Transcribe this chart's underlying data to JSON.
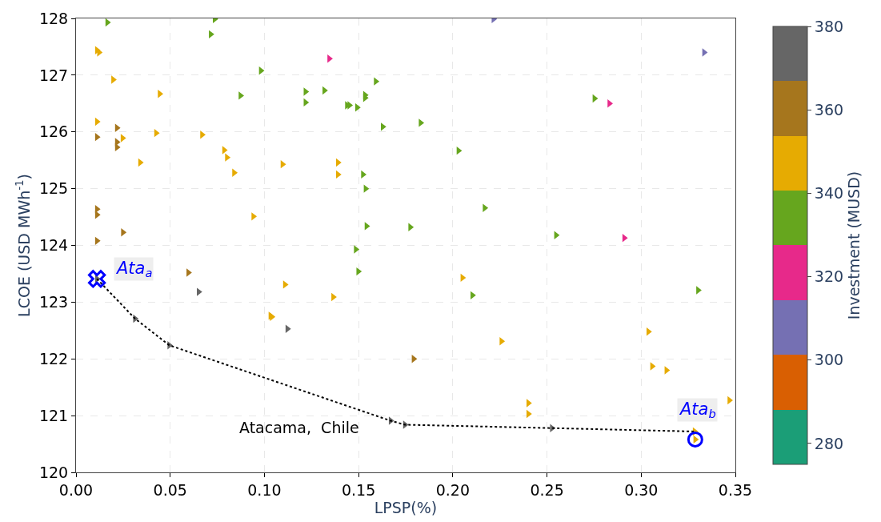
{
  "chart_data": {
    "type": "scatter",
    "xlabel": "LPSP(%)",
    "ylabel": "LCOE (USD MWh$^{-1}$)",
    "clabel": "Investment (MUSD)",
    "xlim": [
      0,
      0.35
    ],
    "xticks": [
      {
        "value": 0,
        "label": "0.00"
      },
      {
        "value": 0.05,
        "label": "0.05"
      },
      {
        "value": 0.1,
        "label": "0.10"
      },
      {
        "value": 0.15,
        "label": "0.15"
      },
      {
        "value": 0.2,
        "label": "0.20"
      },
      {
        "value": 0.25,
        "label": "0.25"
      },
      {
        "value": 0.3,
        "label": "0.30"
      },
      {
        "value": 0.35,
        "label": "0.35"
      }
    ],
    "ylim": [
      120,
      128
    ],
    "yticks": [
      120,
      121,
      122,
      123,
      124,
      125,
      126,
      127,
      128
    ],
    "clim": [
      275,
      380
    ],
    "cticks": [
      280,
      300,
      320,
      340,
      360,
      380
    ],
    "grid": true,
    "annotations": [
      {
        "text": "Ata$_{a}$",
        "x": 0.0111,
        "y": 123.41
      },
      {
        "text": "Ata$_{b}$",
        "x": 0.3287,
        "y": 120.58
      },
      "Atacama,  Chile"
    ],
    "series": [
      {
        "type": "scatter",
        "marker": "triangle",
        "colors": [
          "#66a61e",
          "#66a61e",
          "#66a61e",
          "#66a61e",
          "#66a61e",
          "#66a61e",
          "#66a61e",
          "#66a61e",
          "#66a61e",
          "#66a61e",
          "#66a61e",
          "#66a61e",
          "#66a61e",
          "#66a61e",
          "#66a61e",
          "#66a61e",
          "#66a61e",
          "#66a61e",
          "#66a61e",
          "#66a61e",
          "#66a61e",
          "#66a61e",
          "#66a61e",
          "#66a61e",
          "#66a61e",
          "#66a61e",
          "#66a61e",
          "#66a61e",
          "#e6ab02",
          "#e6ab02",
          "#e6ab02",
          "#e6ab02",
          "#e6ab02",
          "#e6ab02",
          "#e6ab02",
          "#e6ab02",
          "#e6ab02",
          "#e6ab02",
          "#e6ab02",
          "#e6ab02",
          "#e6ab02",
          "#e6ab02",
          "#e6ab02",
          "#e6ab02",
          "#e6ab02",
          "#e6ab02",
          "#e6ab02",
          "#e6ab02",
          "#e6ab02",
          "#e6ab02",
          "#e6ab02",
          "#e6ab02",
          "#e6ab02",
          "#e6ab02",
          "#e6ab02",
          "#e6ab02",
          "#e6ab02",
          "#e6ab02",
          "#a6761d",
          "#a6761d",
          "#a6761d",
          "#a6761d",
          "#a6761d",
          "#a6761d",
          "#a6761d",
          "#a6761d",
          "#a6761d",
          "#a6761d",
          "#666666",
          "#666666",
          "#666666",
          "#666666",
          "#666666",
          "#666666",
          "#666666",
          "#666666",
          "#e7298a",
          "#e7298a",
          "#e7298a",
          "#7570b3",
          "#7570b3"
        ],
        "x": [
          0.0166,
          0.0736,
          0.0715,
          0.0981,
          0.0873,
          0.1218,
          0.1218,
          0.1318,
          0.1591,
          0.1451,
          0.1534,
          0.1534,
          0.1438,
          0.1492,
          0.1628,
          0.1829,
          0.203,
          0.1523,
          0.1537,
          0.2169,
          0.1542,
          0.1774,
          0.1485,
          0.1498,
          0.2548,
          0.3302,
          0.2104,
          0.2752,
          0.0111,
          0.0122,
          0.0197,
          0.0444,
          0.0111,
          0.0425,
          0.0247,
          0.0669,
          0.0786,
          0.0801,
          0.034,
          0.0839,
          0.1096,
          0.0941,
          0.139,
          0.139,
          0.1109,
          0.1365,
          0.1032,
          0.1039,
          0.2051,
          0.2258,
          0.3038,
          0.3058,
          0.3134,
          0.2401,
          0.2401,
          0.3468,
          0.3284,
          0.3287,
          0.0217,
          0.0111,
          0.0217,
          0.0217,
          0.0111,
          0.0111,
          0.0249,
          0.0111,
          0.0596,
          0.1792,
          0.0111,
          0.0651,
          0.1122,
          0.0313,
          0.0495,
          0.167,
          0.1746,
          0.2526,
          0.1344,
          0.2831,
          0.291,
          0.2216,
          0.3334
        ],
        "values": [
          127.93,
          127.99,
          127.72,
          127.08,
          126.64,
          126.71,
          126.52,
          126.73,
          126.89,
          126.47,
          126.65,
          126.6,
          126.47,
          126.43,
          126.09,
          126.16,
          125.67,
          125.25,
          125.0,
          124.66,
          124.34,
          124.32,
          123.93,
          123.54,
          124.18,
          123.21,
          123.12,
          126.59,
          127.44,
          127.4,
          126.92,
          126.67,
          126.18,
          125.98,
          125.89,
          125.95,
          125.68,
          125.55,
          125.46,
          125.28,
          125.43,
          124.51,
          125.46,
          125.25,
          123.31,
          123.09,
          122.76,
          122.74,
          123.43,
          122.31,
          122.48,
          121.87,
          121.8,
          121.22,
          121.03,
          121.27,
          120.72,
          120.58,
          126.07,
          125.91,
          125.82,
          125.73,
          124.64,
          124.54,
          124.23,
          124.08,
          123.52,
          122.0,
          123.41,
          123.18,
          122.53,
          122.71,
          122.24,
          120.91,
          120.84,
          120.78,
          127.29,
          126.5,
          124.13,
          127.99,
          127.4
        ]
      },
      {
        "type": "line",
        "color": "#000000",
        "line_style": "dotted",
        "marker": "none",
        "x": [
          0.0111,
          0.0313,
          0.0495,
          0.167,
          0.1746,
          0.2526,
          0.3284
        ],
        "values": [
          123.41,
          122.71,
          122.24,
          120.91,
          120.84,
          120.78,
          120.72
        ]
      },
      {
        "color": "#0000ff",
        "marker": "cross",
        "x": [
          0.0111
        ],
        "values": [
          123.41
        ]
      },
      {
        "color": "#0000ff",
        "marker": "circle",
        "x": [
          0.3287
        ],
        "values": [
          120.58
        ]
      }
    ]
  }
}
